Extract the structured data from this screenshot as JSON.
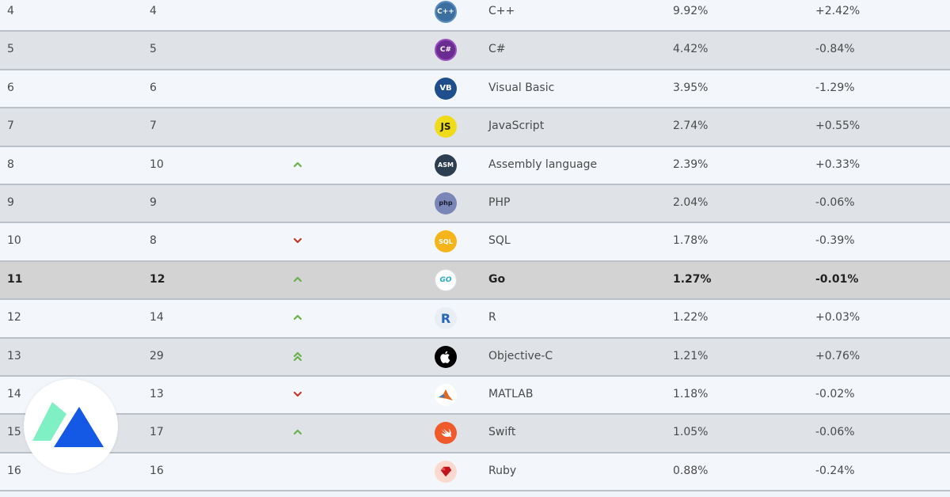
{
  "rows": [
    {
      "rank": "4",
      "prev": "4",
      "change": "none",
      "logo": {
        "icon": "cpp-icon",
        "text": "C++",
        "bg": "#3b6fa0",
        "fg": "#ffffff"
      },
      "name": "C++",
      "rating": "9.92%",
      "delta": "+2.42%"
    },
    {
      "rank": "5",
      "prev": "5",
      "change": "none",
      "logo": {
        "icon": "csharp-icon",
        "text": "C#",
        "bg": "#6a2c91",
        "fg": "#ffffff"
      },
      "name": "C#",
      "rating": "4.42%",
      "delta": "-0.84%"
    },
    {
      "rank": "6",
      "prev": "6",
      "change": "none",
      "logo": {
        "icon": "visual-basic-icon",
        "text": "VB",
        "bg": "#1f4e8c",
        "fg": "#ffffff"
      },
      "name": "Visual Basic",
      "rating": "3.95%",
      "delta": "-1.29%"
    },
    {
      "rank": "7",
      "prev": "7",
      "change": "none",
      "logo": {
        "icon": "javascript-icon",
        "text": "JS",
        "bg": "#f0db1a",
        "fg": "#222222"
      },
      "name": "JavaScript",
      "rating": "2.74%",
      "delta": "+0.55%"
    },
    {
      "rank": "8",
      "prev": "10",
      "change": "up",
      "logo": {
        "icon": "assembly-icon",
        "text": "ASM",
        "bg": "#2d3e50",
        "fg": "#ffffff"
      },
      "name": "Assembly language",
      "rating": "2.39%",
      "delta": "+0.33%"
    },
    {
      "rank": "9",
      "prev": "9",
      "change": "none",
      "logo": {
        "icon": "php-icon",
        "text": "php",
        "bg": "#7a86b8",
        "fg": "#1a1a2e"
      },
      "name": "PHP",
      "rating": "2.04%",
      "delta": "-0.06%"
    },
    {
      "rank": "10",
      "prev": "8",
      "change": "down",
      "logo": {
        "icon": "sql-icon",
        "text": "SQL",
        "bg": "#f4b41a",
        "fg": "#ffffff"
      },
      "name": "SQL",
      "rating": "1.78%",
      "delta": "-0.39%"
    },
    {
      "rank": "11",
      "prev": "12",
      "change": "up",
      "logo": {
        "icon": "go-icon",
        "text": "GO",
        "bg": "#ffffff",
        "fg": "#29a9c8"
      },
      "name": "Go",
      "rating": "1.27%",
      "delta": "-0.01%",
      "highlight": true
    },
    {
      "rank": "12",
      "prev": "14",
      "change": "up",
      "logo": {
        "icon": "r-icon",
        "text": "R",
        "bg": "#e8eef4",
        "fg": "#2766b8"
      },
      "name": "R",
      "rating": "1.22%",
      "delta": "+0.03%"
    },
    {
      "rank": "13",
      "prev": "29",
      "change": "double-up",
      "logo": {
        "icon": "apple-icon",
        "text": "",
        "bg": "#000000",
        "fg": "#ffffff"
      },
      "name": "Objective-C",
      "rating": "1.21%",
      "delta": "+0.76%"
    },
    {
      "rank": "14",
      "prev": "13",
      "change": "down",
      "logo": {
        "icon": "matlab-icon",
        "text": "",
        "bg": "#ffffff",
        "fg": "#e06a22"
      },
      "name": "MATLAB",
      "rating": "1.18%",
      "delta": "-0.02%"
    },
    {
      "rank": "15",
      "prev": "17",
      "change": "up",
      "logo": {
        "icon": "swift-icon",
        "text": "",
        "bg": "#f05a2a",
        "fg": "#ffffff"
      },
      "name": "Swift",
      "rating": "1.05%",
      "delta": "-0.06%"
    },
    {
      "rank": "16",
      "prev": "16",
      "change": "none",
      "logo": {
        "icon": "ruby-icon",
        "text": "",
        "bg": "#fbd9cf",
        "fg": "#c1121a"
      },
      "name": "Ruby",
      "rating": "0.88%",
      "delta": "-0.24%"
    }
  ],
  "colors": {
    "up": "#6ab04c",
    "down": "#c0392b",
    "brand_light": "#7ff0c4",
    "brand_dark": "#1458e6"
  },
  "brand": {
    "icon": "brand-logo-icon"
  }
}
